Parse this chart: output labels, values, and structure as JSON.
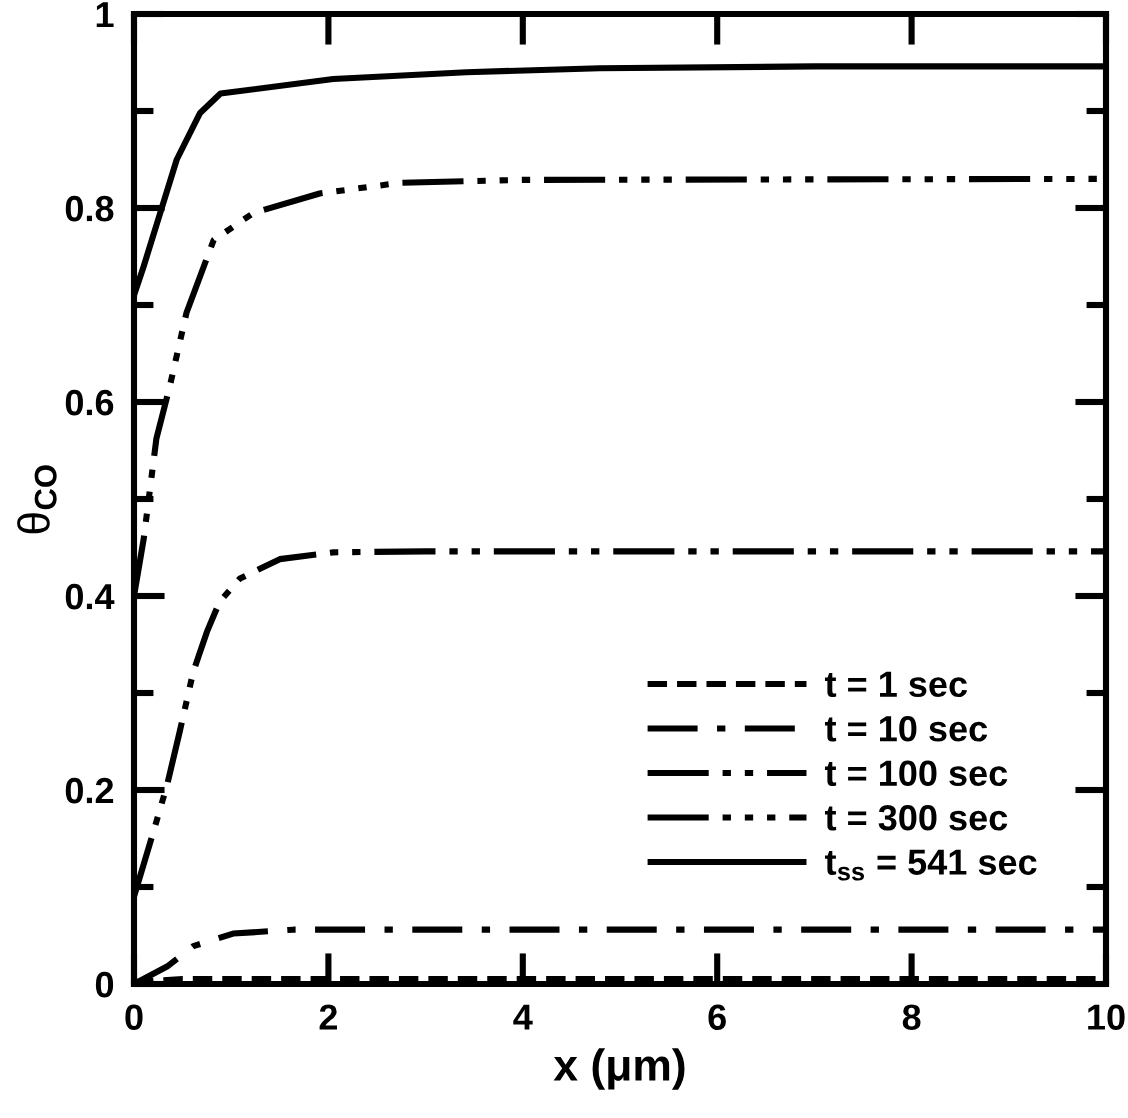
{
  "chart_data": {
    "type": "line",
    "xlabel": "x (μm)",
    "ylabel": "θ$_{CO}$",
    "xlim": [
      0,
      10
    ],
    "xticks": [
      0,
      2,
      4,
      6,
      8,
      10
    ],
    "ylim": [
      0,
      1
    ],
    "yticks": [
      0,
      {
        "value": 0.1,
        "label": null
      },
      0.2,
      {
        "value": 0.3,
        "label": null
      },
      0.4,
      {
        "value": 0.5,
        "label": null
      },
      0.6,
      {
        "value": 0.7,
        "label": null
      },
      0.8,
      {
        "value": 0.9,
        "label": null
      },
      1
    ],
    "grid": false,
    "legend": "bottom right",
    "marker": "none",
    "series": [
      {
        "name": "t = 1 sec",
        "color": "#000000",
        "line_style": "dashed",
        "x": [
          0,
          0.5,
          2,
          5,
          10
        ],
        "values": [
          0.002,
          0.005,
          0.005,
          0.005,
          0.005
        ]
      },
      {
        "name": "t = 10 sec",
        "color": "#000000",
        "line_style": "dashdot",
        "x": [
          0,
          0.34,
          0.61,
          1.02,
          1.64,
          2.5,
          4,
          6,
          8,
          10
        ],
        "values": [
          0.0,
          0.018,
          0.039,
          0.052,
          0.056,
          0.056,
          0.056,
          0.056,
          0.056,
          0.056
        ]
      },
      {
        "name": "t = 100 sec",
        "color": "#000000",
        "line_style": "dashdotdot",
        "x": [
          0,
          0.2,
          0.34,
          0.47,
          0.61,
          0.75,
          0.88,
          1.09,
          1.5,
          2.05,
          3,
          5,
          10
        ],
        "values": [
          0.09,
          0.157,
          0.205,
          0.26,
          0.322,
          0.363,
          0.394,
          0.418,
          0.438,
          0.445,
          0.446,
          0.446,
          0.446
        ]
      },
      {
        "name": "t = 300 sec",
        "color": "#000000",
        "line_style": "dashdotdotdot",
        "x": [
          0,
          0.1,
          0.23,
          0.37,
          0.54,
          0.82,
          1.23,
          1.91,
          2.74,
          4,
          10
        ],
        "values": [
          0.4,
          0.459,
          0.562,
          0.617,
          0.692,
          0.767,
          0.795,
          0.815,
          0.826,
          0.829,
          0.83
        ]
      },
      {
        "name": "t$_{ss}$ = 541 sec",
        "color": "#000000",
        "line_style": "solid",
        "x": [
          0,
          0.1,
          0.27,
          0.44,
          0.68,
          0.89,
          2.05,
          3.42,
          4.79,
          7,
          10
        ],
        "values": [
          0.71,
          0.74,
          0.795,
          0.85,
          0.898,
          0.918,
          0.933,
          0.94,
          0.944,
          0.946,
          0.946
        ]
      }
    ]
  }
}
